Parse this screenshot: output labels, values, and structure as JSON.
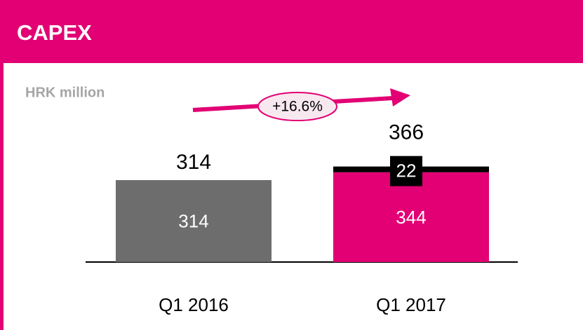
{
  "chart_data": {
    "type": "stacked-bar",
    "title": "CAPEX",
    "subtitle": "HRK million",
    "categories": [
      "Q1 2016",
      "Q1 2017"
    ],
    "series": [
      {
        "values": [
          314,
          344
        ],
        "colors": [
          "#6d6d6d",
          "#e20074"
        ]
      },
      {
        "values": [
          null,
          22
        ],
        "color": "#000000"
      }
    ],
    "totals": [
      314,
      366
    ],
    "annotation": "+16.6%",
    "ylim": [
      0,
      400
    ]
  }
}
